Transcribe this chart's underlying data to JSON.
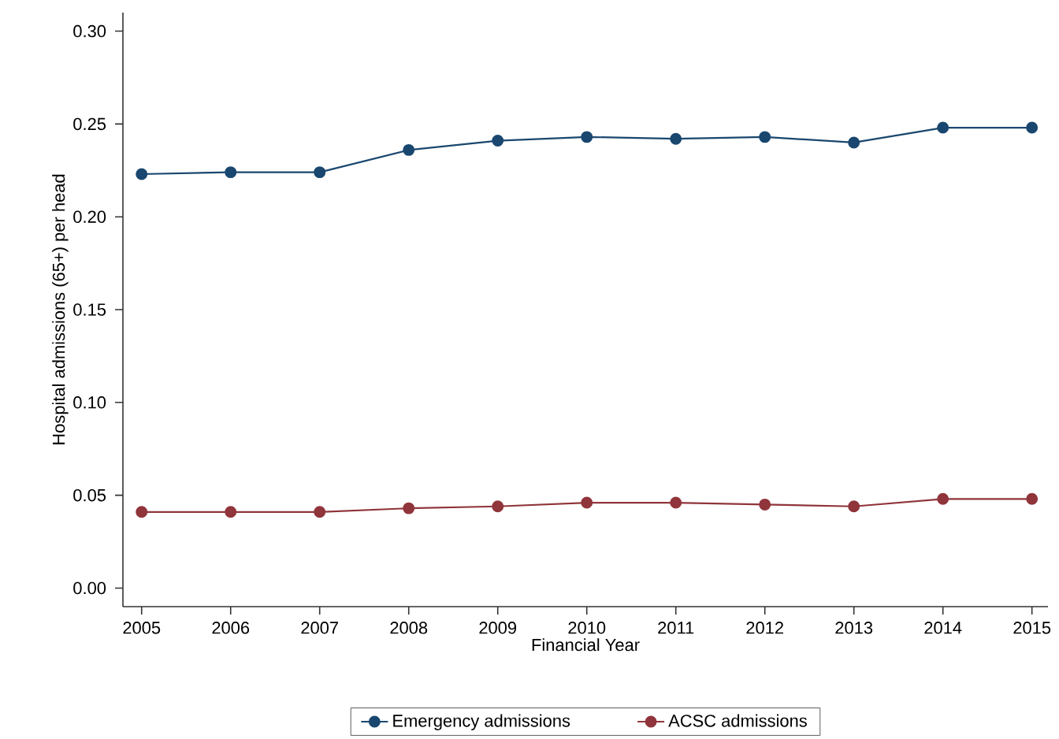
{
  "chart_data": {
    "type": "line",
    "xlabel": "Financial Year",
    "ylabel": "Hospital admissions (65+) per head",
    "x": [
      2005,
      2006,
      2007,
      2008,
      2009,
      2010,
      2011,
      2012,
      2013,
      2014,
      2015
    ],
    "series": [
      {
        "name": "Emergency admissions",
        "color": "#1a476f",
        "values": [
          0.223,
          0.224,
          0.224,
          0.236,
          0.241,
          0.243,
          0.242,
          0.243,
          0.24,
          0.248,
          0.248
        ]
      },
      {
        "name": "ACSC admissions",
        "color": "#90353b",
        "values": [
          0.041,
          0.041,
          0.041,
          0.043,
          0.044,
          0.046,
          0.046,
          0.045,
          0.044,
          0.048,
          0.048
        ]
      }
    ],
    "xlim": [
      2004.79,
      2015.18
    ],
    "ylim": [
      -0.01,
      0.31
    ],
    "xticks": [
      2005,
      2006,
      2007,
      2008,
      2009,
      2010,
      2011,
      2012,
      2013,
      2014,
      2015
    ],
    "yticks": [
      {
        "value": 0,
        "label": "0.00"
      },
      {
        "value": 0.05,
        "label": "0.05"
      },
      {
        "value": 0.1,
        "label": "0.10"
      },
      {
        "value": 0.15,
        "label": "0.15"
      },
      {
        "value": 0.2,
        "label": "0.20"
      },
      {
        "value": 0.25,
        "label": "0.25"
      },
      {
        "value": 0.3,
        "label": "0.30"
      }
    ],
    "grid": false,
    "legend": "bottom",
    "marker": "circle",
    "line_style": "solid"
  }
}
